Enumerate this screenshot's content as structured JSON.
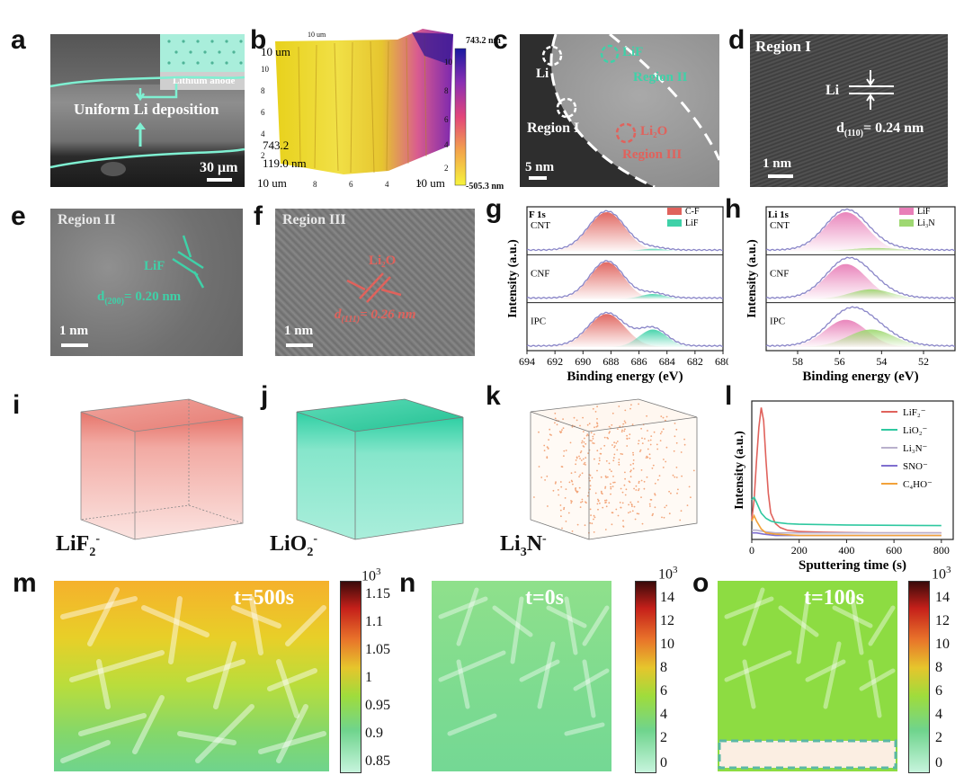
{
  "panels": {
    "a": {
      "letter": "a",
      "inset_label": "Lithium anode",
      "caption": "Uniform Li deposition",
      "scale": "30 μm"
    },
    "b": {
      "letter": "b",
      "max": "743.2 nm",
      "min": "-505.3 nm",
      "cb_ticks": [
        "10",
        "8",
        "6",
        "4",
        "2"
      ],
      "axis_left": [
        "10",
        "8",
        "6",
        "4",
        "2"
      ],
      "axis_bottom": [
        "10",
        "8",
        "6",
        "4",
        "2"
      ],
      "small_labels": [
        "10 um",
        "743.2",
        "119.0 nm",
        "10 um",
        "10 um"
      ]
    },
    "c": {
      "letter": "c",
      "li": "Li",
      "lif": "LiF",
      "region1": "Region I",
      "region2": "Region II",
      "li2o": "Li₂O",
      "region3": "Region III",
      "scale": "5 nm"
    },
    "d": {
      "letter": "d",
      "region": "Region I",
      "li": "Li",
      "d_label": "d",
      "d_sub": "(110)",
      "d_value": "= 0.24 nm",
      "scale": "1 nm"
    },
    "e": {
      "letter": "e",
      "region": "Region II",
      "lif": "LiF",
      "d_label": "d",
      "d_sub": "(200)",
      "d_value": "= 0.20 nm",
      "scale": "1 nm"
    },
    "f": {
      "letter": "f",
      "region": "Region III",
      "li2o": "Li₂O",
      "d_label": "d",
      "d_sub": "(111)",
      "d_value": "= 0.26 nm",
      "scale": "1 nm"
    },
    "i": {
      "letter": "i",
      "label": "LiF",
      "sub": "2",
      "sup": "-"
    },
    "j": {
      "letter": "j",
      "label": "LiO",
      "sub": "2",
      "sup": "-"
    },
    "k": {
      "letter": "k",
      "label": "Li",
      "sub": "3",
      "rest": "N",
      "sup": "-"
    },
    "m": {
      "letter": "m",
      "time": "t=500s",
      "cb_exp": "10",
      "cb_exp_sup": "3",
      "cb_ticks": [
        "1.15",
        "1.1",
        "1.05",
        "1",
        "0.95",
        "0.9",
        "0.85"
      ]
    },
    "n": {
      "letter": "n",
      "time": "t=0s",
      "cb_exp": "10",
      "cb_exp_sup": "3",
      "cb_ticks": [
        "14",
        "12",
        "10",
        "8",
        "6",
        "4",
        "2",
        "0"
      ]
    },
    "o": {
      "letter": "o",
      "time": "t=100s",
      "cb_exp": "10",
      "cb_exp_sup": "3",
      "cb_ticks": [
        "14",
        "12",
        "10",
        "8",
        "6",
        "4",
        "2",
        "0"
      ]
    }
  },
  "chart_data": [
    {
      "id": "g",
      "type": "line",
      "title": "F 1s",
      "xlabel": "Binding energy (eV)",
      "ylabel": "Intensity (a.u.)",
      "xlim": [
        694,
        680
      ],
      "xticks": [
        "694",
        "692",
        "690",
        "688",
        "686",
        "684",
        "682",
        "680"
      ],
      "legend": [
        "C-F",
        "LiF"
      ],
      "legend_colors": [
        "#e0625c",
        "#3fd1a8"
      ],
      "series": [
        {
          "name": "CNT",
          "peaks": [
            {
              "center": 688.3,
              "height": 1.0,
              "width": 1.3
            },
            {
              "center": 685.0,
              "height": 0.06,
              "width": 0.9
            }
          ]
        },
        {
          "name": "CNF",
          "peaks": [
            {
              "center": 688.3,
              "height": 0.95,
              "width": 1.2
            },
            {
              "center": 685.0,
              "height": 0.13,
              "width": 0.9
            }
          ]
        },
        {
          "name": "IPC",
          "peaks": [
            {
              "center": 688.3,
              "height": 0.85,
              "width": 1.3
            },
            {
              "center": 685.0,
              "height": 0.45,
              "width": 1.0
            }
          ]
        }
      ]
    },
    {
      "id": "h",
      "type": "line",
      "title": "Li 1s",
      "xlabel": "Binding energy (eV)",
      "ylabel": "Intensity (a.u.)",
      "xlim": [
        59.5,
        50.5
      ],
      "xticks": [
        "58",
        "56",
        "54",
        "52"
      ],
      "legend": [
        "LiF",
        "Li₃N"
      ],
      "legend_colors": [
        "#e87fb8",
        "#9fd872"
      ],
      "series": [
        {
          "name": "CNT",
          "peaks": [
            {
              "center": 55.7,
              "height": 1.0,
              "width": 1.0
            },
            {
              "center": 54.3,
              "height": 0.08,
              "width": 1.2
            }
          ]
        },
        {
          "name": "CNF",
          "peaks": [
            {
              "center": 55.7,
              "height": 0.9,
              "width": 1.0
            },
            {
              "center": 54.5,
              "height": 0.25,
              "width": 1.0
            }
          ]
        },
        {
          "name": "IPC",
          "peaks": [
            {
              "center": 55.7,
              "height": 0.7,
              "width": 1.0
            },
            {
              "center": 54.5,
              "height": 0.45,
              "width": 1.1
            }
          ]
        }
      ]
    },
    {
      "id": "l",
      "type": "line",
      "title": "",
      "xlabel": "Sputtering time (s)",
      "ylabel": "Intensity (a.u.)",
      "xlim": [
        0,
        850
      ],
      "ylim": [
        0,
        1.05
      ],
      "xticks": [
        "0",
        "200",
        "400",
        "600",
        "800"
      ],
      "series": [
        {
          "name": "LiF₂⁻",
          "color": "#e0625c",
          "x": [
            0,
            10,
            20,
            30,
            40,
            50,
            60,
            70,
            80,
            100,
            120,
            150,
            200,
            300,
            500,
            800
          ],
          "values": [
            0.15,
            0.3,
            0.6,
            0.85,
            1.0,
            0.9,
            0.6,
            0.35,
            0.2,
            0.12,
            0.09,
            0.07,
            0.06,
            0.055,
            0.05,
            0.05
          ]
        },
        {
          "name": "LiO₂⁻",
          "color": "#2fc8a0",
          "x": [
            0,
            10,
            20,
            40,
            60,
            80,
            100,
            150,
            200,
            400,
            800
          ],
          "values": [
            0.3,
            0.32,
            0.28,
            0.2,
            0.16,
            0.14,
            0.13,
            0.12,
            0.115,
            0.11,
            0.105
          ]
        },
        {
          "name": "Li₃N⁻",
          "color": "#b9b0cc",
          "x": [
            0,
            20,
            50,
            100,
            200,
            400,
            800
          ],
          "values": [
            0.07,
            0.07,
            0.06,
            0.05,
            0.05,
            0.05,
            0.05
          ]
        },
        {
          "name": "SNO⁻",
          "color": "#7f6fcf",
          "x": [
            0,
            20,
            50,
            100,
            200,
            400,
            800
          ],
          "values": [
            0.05,
            0.05,
            0.04,
            0.03,
            0.03,
            0.03,
            0.03
          ]
        },
        {
          "name": "C₄HO⁻",
          "color": "#f2a23a",
          "x": [
            0,
            10,
            20,
            40,
            60,
            100,
            200,
            400,
            800
          ],
          "values": [
            0.14,
            0.18,
            0.14,
            0.08,
            0.05,
            0.04,
            0.03,
            0.03,
            0.03
          ]
        }
      ]
    }
  ]
}
